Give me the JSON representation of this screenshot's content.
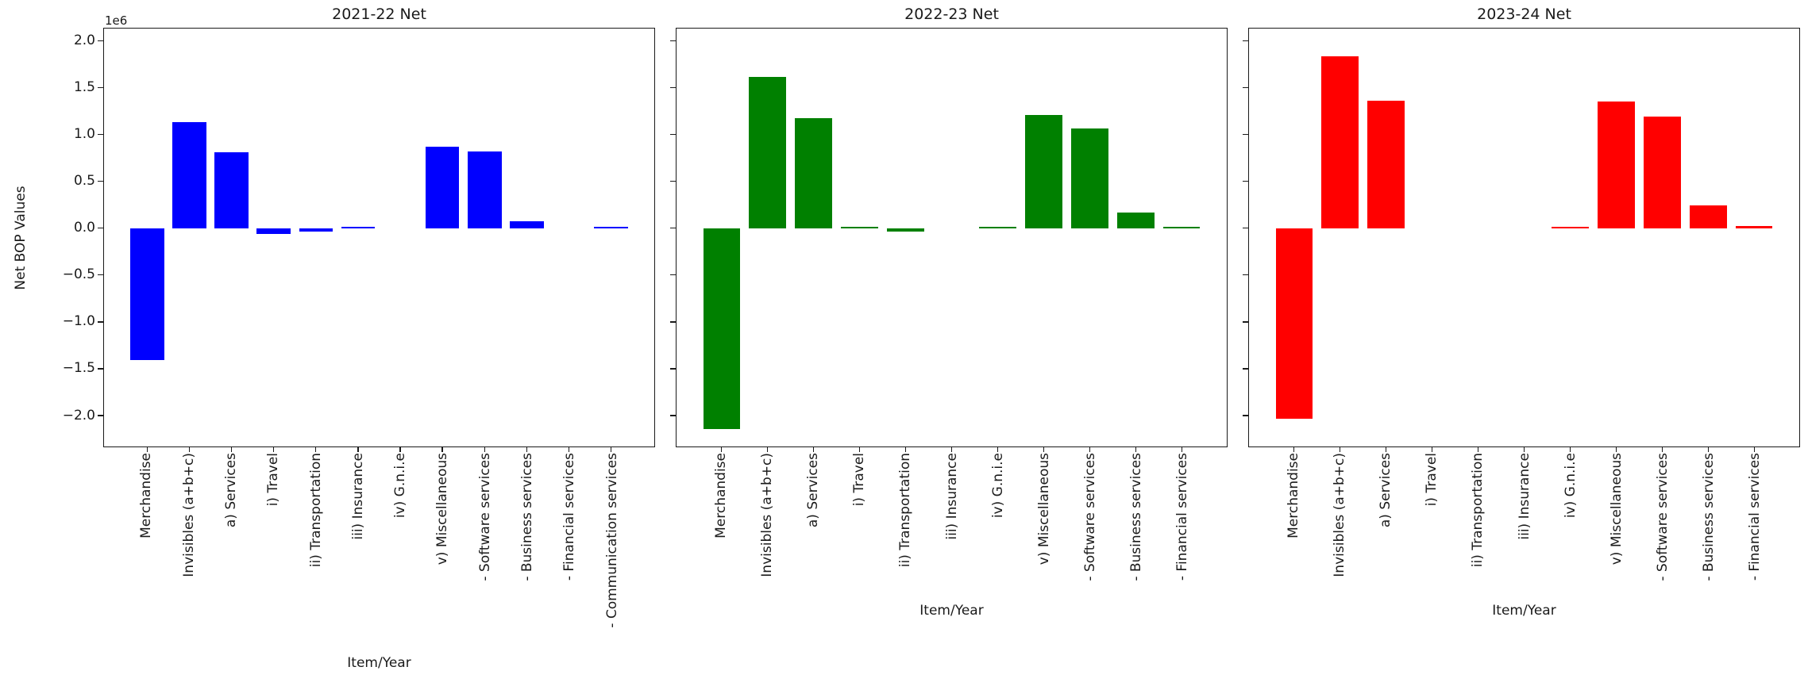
{
  "figure": {
    "ylabel": "Net BOP Values",
    "xlabel": "Item/Year",
    "y_offset_label": "1e6",
    "ylim": [
      -2330000,
      2130000
    ],
    "yticks": [
      {
        "value": 2000000,
        "label": "2.0"
      },
      {
        "value": 1500000,
        "label": "1.5"
      },
      {
        "value": 1000000,
        "label": "1.0"
      },
      {
        "value": 500000,
        "label": "0.5"
      },
      {
        "value": 0,
        "label": "0.0"
      },
      {
        "value": -500000,
        "label": "−0.5"
      },
      {
        "value": -1000000,
        "label": "−1.0"
      },
      {
        "value": -1500000,
        "label": "−1.5"
      },
      {
        "value": -2000000,
        "label": "−2.0"
      }
    ]
  },
  "chart_data": [
    {
      "type": "bar",
      "title": "2021-22 Net",
      "color": "#0000ff",
      "xlabel": "Item/Year",
      "ylabel": "Net BOP Values",
      "ylim": [
        -2330000,
        2130000
      ],
      "grid": false,
      "legend": null,
      "categories": [
        "Merchandise",
        "Invisibles (a+b+c)",
        "a) Services",
        "i) Travel",
        "ii) Transportation",
        "iii) Insurance",
        "iv) G.n.i.e",
        "v) Miscellaneous",
        "- Software services",
        "- Business services",
        "- Financial services",
        "- Communication services"
      ],
      "values": [
        -1410000,
        1130000,
        810000,
        -60000,
        -40000,
        10000,
        0,
        870000,
        820000,
        70000,
        0,
        15000
      ],
      "show_ytick_labels": true
    },
    {
      "type": "bar",
      "title": "2022-23 Net",
      "color": "#008000",
      "xlabel": "Item/Year",
      "ylabel": "Net BOP Values",
      "ylim": [
        -2330000,
        2130000
      ],
      "grid": false,
      "legend": null,
      "categories": [
        "Merchandise",
        "Invisibles (a+b+c)",
        "a) Services",
        "i) Travel",
        "ii) Transportation",
        "iii) Insurance",
        "iv) G.n.i.e",
        "v) Miscellaneous",
        "- Software services",
        "- Business services",
        "- Financial services"
      ],
      "values": [
        -2140000,
        1610000,
        1170000,
        10000,
        -40000,
        0,
        10000,
        1210000,
        1060000,
        170000,
        10000
      ],
      "show_ytick_labels": false
    },
    {
      "type": "bar",
      "title": "2023-24 Net",
      "color": "#ff0000",
      "xlabel": "Item/Year",
      "ylabel": "Net BOP Values",
      "ylim": [
        -2330000,
        2130000
      ],
      "grid": false,
      "legend": null,
      "categories": [
        "Merchandise",
        "Invisibles (a+b+c)",
        "a) Services",
        "i) Travel",
        "ii) Transportation",
        "iii) Insurance",
        "iv) G.n.i.e",
        "v) Miscellaneous",
        "- Software services",
        "- Business services",
        "- Financial services"
      ],
      "values": [
        -2030000,
        1830000,
        1360000,
        0,
        0,
        0,
        10000,
        1350000,
        1190000,
        240000,
        20000
      ],
      "show_ytick_labels": false
    }
  ]
}
